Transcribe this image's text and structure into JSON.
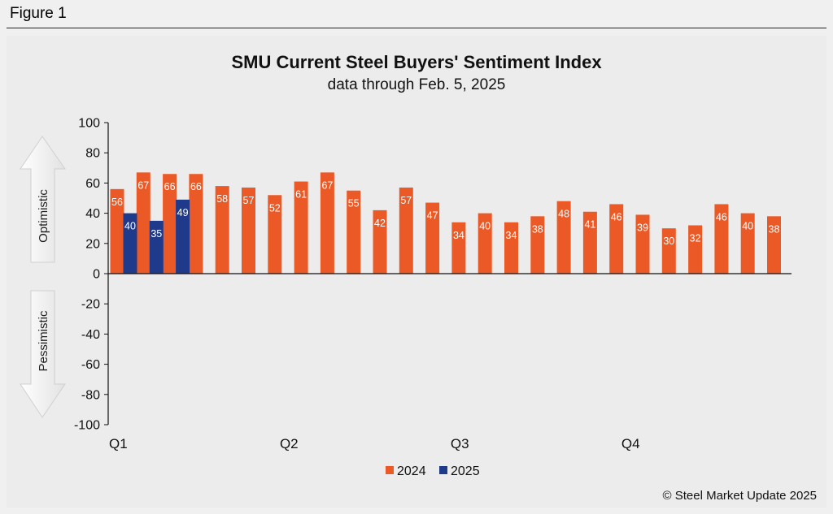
{
  "figure_label": "Figure 1",
  "copyright": "© Steel Market Update 2025",
  "indicators": {
    "up": "Optimistic",
    "down": "Pessimistic"
  },
  "colors": {
    "2024": "#eb5a26",
    "2025": "#1f3a8a"
  },
  "chart_data": {
    "type": "bar",
    "title": "SMU Current Steel Buyers' Sentiment Index",
    "subtitle": "data through Feb. 5, 2025",
    "ylim": [
      -100,
      100
    ],
    "yticks": [
      100,
      80,
      60,
      40,
      20,
      0,
      -20,
      -40,
      -60,
      -80,
      -100
    ],
    "quarter_labels": [
      "Q1",
      "Q2",
      "Q3",
      "Q4"
    ],
    "legend_position": "bottom",
    "series": [
      {
        "name": "2024",
        "values": [
          56,
          67,
          66,
          66,
          58,
          57,
          52,
          61,
          67,
          55,
          42,
          57,
          47,
          34,
          40,
          34,
          38,
          48,
          41,
          46,
          39,
          30,
          32,
          46,
          40,
          38
        ]
      },
      {
        "name": "2025",
        "values": [
          40,
          35,
          49
        ]
      }
    ]
  }
}
